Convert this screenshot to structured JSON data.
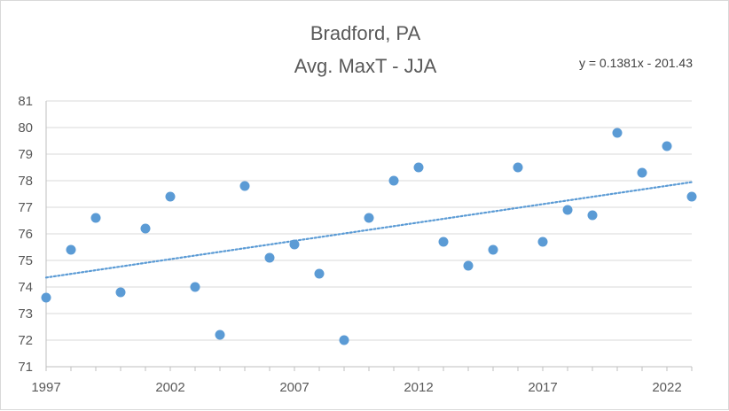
{
  "chart_data": {
    "type": "scatter",
    "title": "Bradford, PA",
    "subtitle": "Avg. MaxT - JJA",
    "xlabel": "",
    "ylabel": "",
    "xlim": [
      1997,
      2023
    ],
    "ylim": [
      71,
      81
    ],
    "x_ticks": [
      1997,
      2002,
      2007,
      2012,
      2017,
      2022
    ],
    "y_ticks": [
      71,
      72,
      73,
      74,
      75,
      76,
      77,
      78,
      79,
      80,
      81
    ],
    "grid": "horizontal",
    "legend": "none",
    "point_color": "#5b9bd5",
    "trendline": {
      "type": "linear",
      "slope": 0.1381,
      "intercept": -201.43,
      "style": "dotted",
      "color": "#5b9bd5",
      "equation_label": "y = 0.1381x - 201.43"
    },
    "series": [
      {
        "x": [
          1997,
          1998,
          1999,
          2000,
          2001,
          2002,
          2003,
          2004,
          2005,
          2006,
          2007,
          2008,
          2009,
          2010,
          2011,
          2012,
          2013,
          2014,
          2015,
          2016,
          2017,
          2018,
          2019,
          2020,
          2021,
          2022,
          2023
        ],
        "y": [
          73.6,
          75.4,
          76.6,
          73.8,
          76.2,
          77.4,
          74.0,
          72.2,
          77.8,
          75.1,
          75.6,
          74.5,
          72.0,
          76.6,
          78.0,
          78.5,
          75.7,
          74.8,
          75.4,
          78.5,
          75.7,
          76.9,
          76.7,
          79.8,
          78.3,
          79.3,
          77.4
        ]
      }
    ]
  }
}
